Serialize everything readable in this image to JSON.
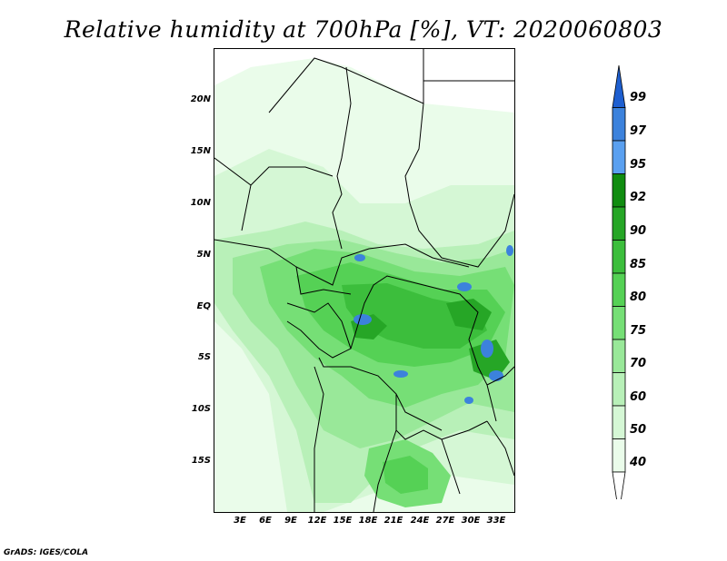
{
  "title": "Relative humidity at 700hPa [%], VT: 2020060803",
  "credit": "GrADS: IGES/COLA",
  "map": {
    "lat_labels": [
      "20N",
      "15N",
      "10N",
      "5N",
      "EQ",
      "5S",
      "10S",
      "15S"
    ],
    "lon_labels": [
      "3E",
      "6E",
      "9E",
      "12E",
      "15E",
      "18E",
      "21E",
      "24E",
      "27E",
      "30E",
      "33E"
    ]
  },
  "colorbar": {
    "labels": [
      "99",
      "97",
      "95",
      "92",
      "90",
      "85",
      "80",
      "75",
      "70",
      "60",
      "50",
      "40"
    ],
    "colors": [
      "#1e5fd0",
      "#3c82dc",
      "#5aa0f0",
      "#108c10",
      "#26a626",
      "#3cbe3c",
      "#55d155",
      "#76df76",
      "#99e899",
      "#b8f0b8",
      "#d5f7d5",
      "#eafcea",
      "#ffffff"
    ]
  }
}
